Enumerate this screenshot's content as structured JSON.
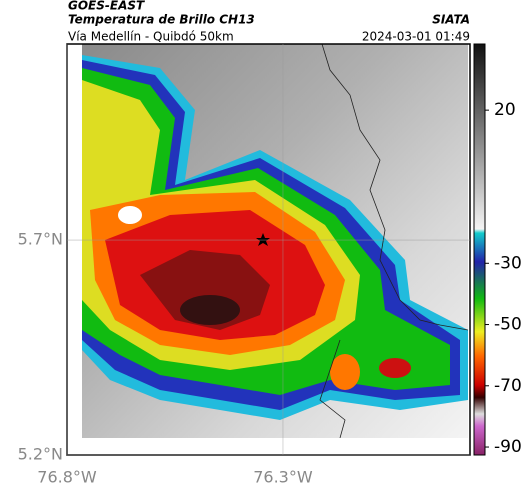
{
  "header": {
    "title": "GOES-EAST",
    "subtitle": "Temperatura de Brillo CH13",
    "source": "SIATA",
    "route": "Vía Medellín - Quibdó 50km",
    "datetime": "2024-03-01 01:49"
  },
  "map": {
    "lonlim": [
      -76.8,
      -75.867
    ],
    "latlim": [
      5.2,
      6.156
    ],
    "lat_ticks": [
      {
        "value": 5.7,
        "label": "5.7°N"
      },
      {
        "value": 5.2,
        "label": "5.2°N"
      }
    ],
    "lon_ticks": [
      {
        "value": -76.8,
        "label": "76.8°W"
      },
      {
        "value": -76.3,
        "label": "76.3°W"
      }
    ]
  },
  "colorbar": {
    "lim": [
      -92.6,
      41.6
    ],
    "ticks": [
      20,
      -30,
      -50,
      -70,
      -90
    ]
  }
}
